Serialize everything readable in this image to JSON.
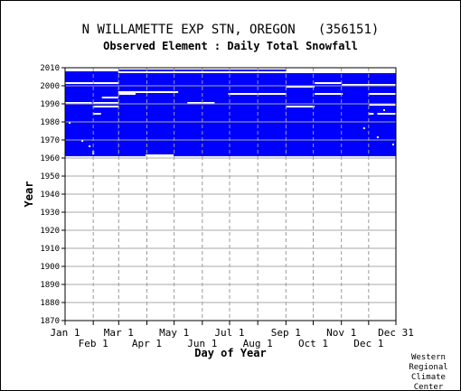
{
  "chart_data": {
    "type": "heatmap",
    "title": "N WILLAMETTE EXP STN, OREGON   (356151)",
    "subtitle": "Observed Element : Daily Total Snowfall",
    "xlabel": "Day of Year",
    "ylabel": "Year",
    "xlim": [
      1,
      365
    ],
    "ylim": [
      1870,
      2010
    ],
    "x_ticks_upper": [
      {
        "label": "Jan 1",
        "day": 1
      },
      {
        "label": "Mar 1",
        "day": 60
      },
      {
        "label": "May 1",
        "day": 121
      },
      {
        "label": "Jul 1",
        "day": 182
      },
      {
        "label": "Sep 1",
        "day": 244
      },
      {
        "label": "Nov 1",
        "day": 305
      },
      {
        "label": "Dec 31",
        "day": 365
      }
    ],
    "x_ticks_lower": [
      {
        "label": "Feb 1",
        "day": 32
      },
      {
        "label": "Apr 1",
        "day": 91
      },
      {
        "label": "Jun 1",
        "day": 152
      },
      {
        "label": "Aug 1",
        "day": 213
      },
      {
        "label": "Oct 1",
        "day": 274
      },
      {
        "label": "Dec 1",
        "day": 335
      }
    ],
    "y_ticks": [
      1870,
      1880,
      1890,
      1900,
      1910,
      1920,
      1930,
      1940,
      1950,
      1960,
      1970,
      1980,
      1990,
      2000,
      2010
    ],
    "grid": true,
    "data_color": "#0000ff",
    "record": {
      "start_year": 1961,
      "end_year": 2007,
      "meaning": "blue = days with observed data; white = missing"
    },
    "data_blocks": [
      {
        "day_start": 1,
        "day_end": 59,
        "year_start": 1961,
        "year_end": 2007
      },
      {
        "day_start": 60,
        "day_end": 244,
        "year_start": 1961,
        "year_end": 2008
      },
      {
        "day_start": 245,
        "day_end": 365,
        "year_start": 1961,
        "year_end": 2007
      }
    ],
    "missing_runs": [
      {
        "day_start": 1,
        "day_end": 59,
        "year": 2001
      },
      {
        "day_start": 1,
        "day_end": 30,
        "year": 1990
      },
      {
        "day_start": 50,
        "day_end": 59,
        "year": 1993
      },
      {
        "day_start": 32,
        "day_end": 59,
        "year": 1990
      },
      {
        "day_start": 32,
        "day_end": 59,
        "year": 1988
      },
      {
        "day_start": 32,
        "day_end": 40,
        "year": 1984
      },
      {
        "day_start": 42,
        "day_end": 50,
        "year": 1993
      },
      {
        "day_start": 60,
        "day_end": 244,
        "year": 2007
      },
      {
        "day_start": 60,
        "day_end": 78,
        "year": 1996
      },
      {
        "day_start": 60,
        "day_end": 78,
        "year": 1995
      },
      {
        "day_start": 79,
        "day_end": 125,
        "year": 1996
      },
      {
        "day_start": 181,
        "day_end": 244,
        "year": 1995
      },
      {
        "day_start": 136,
        "day_end": 165,
        "year": 1990
      },
      {
        "day_start": 90,
        "day_end": 120,
        "year": 1961
      },
      {
        "day_start": 245,
        "day_end": 365,
        "year": 2007
      },
      {
        "day_start": 245,
        "day_end": 275,
        "year": 1999
      },
      {
        "day_start": 245,
        "day_end": 275,
        "year": 1988
      },
      {
        "day_start": 276,
        "day_end": 305,
        "year": 2001
      },
      {
        "day_start": 276,
        "day_end": 306,
        "year": 1995
      },
      {
        "day_start": 306,
        "day_end": 365,
        "year": 2000
      },
      {
        "day_start": 336,
        "day_end": 365,
        "year": 1995
      },
      {
        "day_start": 336,
        "day_end": 365,
        "year": 1989
      },
      {
        "day_start": 336,
        "day_end": 340,
        "year": 1984
      },
      {
        "day_start": 345,
        "day_end": 365,
        "year": 1984
      }
    ],
    "missing_days": [
      {
        "day": 6,
        "year": 1979
      },
      {
        "day": 20,
        "year": 1969
      },
      {
        "day": 32,
        "year": 1962
      },
      {
        "day": 32,
        "year": 1963
      },
      {
        "day": 28,
        "year": 1966
      },
      {
        "day": 330,
        "year": 1976
      },
      {
        "day": 352,
        "year": 1986
      },
      {
        "day": 362,
        "year": 1967
      },
      {
        "day": 345,
        "year": 1971
      }
    ],
    "credit": [
      "Western",
      "Regional",
      "Climate",
      "Center"
    ]
  }
}
